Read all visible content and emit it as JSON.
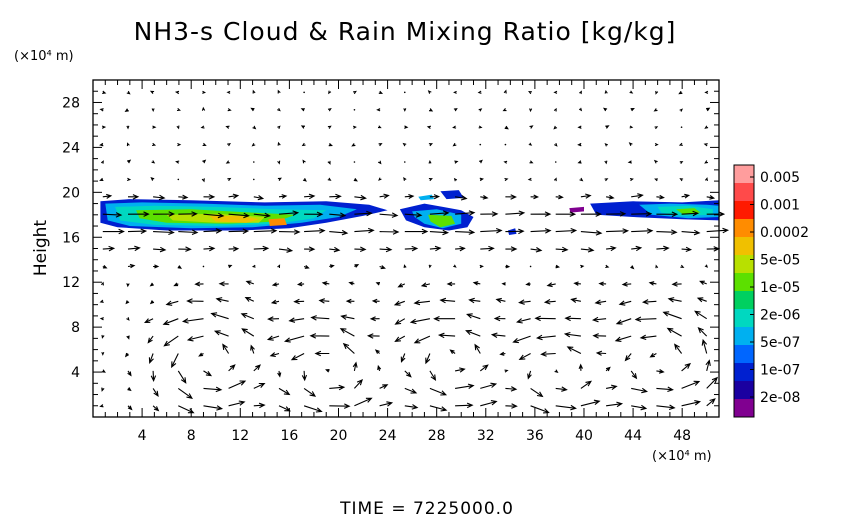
{
  "chart_data": {
    "type": "heatmap",
    "title": "NH3-s Cloud & Rain Mixing Ratio [kg/kg]",
    "ylabel": "Height",
    "y_unit": "(×10⁴ m)",
    "x_unit": "(×10⁴ m)",
    "xlim": [
      0,
      51
    ],
    "ylim": [
      0,
      30
    ],
    "x_ticks": [
      "4",
      "8",
      "12",
      "16",
      "20",
      "24",
      "28",
      "32",
      "36",
      "40",
      "44",
      "48"
    ],
    "y_ticks": [
      "4",
      "8",
      "12",
      "16",
      "20",
      "24",
      "28"
    ],
    "grid": false,
    "overlay": "velocity vectors (wind arrows)",
    "colorbar": {
      "scale": "log",
      "labels": [
        "0.005",
        "0.001",
        "0.0002",
        "5e-05",
        "1e-05",
        "2e-06",
        "5e-07",
        "1e-07",
        "2e-08"
      ],
      "colors": [
        "#ff9d9d",
        "#ff4a4a",
        "#ff1a00",
        "#ff8c00",
        "#f0c000",
        "#b8e000",
        "#5ce000",
        "#00d060",
        "#00d8c0",
        "#00b0f0",
        "#0066ff",
        "#0020d0",
        "#1a00a0",
        "#800090"
      ]
    },
    "cloud_regions": [
      {
        "x": [
          0.5,
          24
        ],
        "y": [
          16.5,
          19.3
        ],
        "peak_value": "0.0002"
      },
      {
        "x": [
          25,
          31
        ],
        "y": [
          16.5,
          20
        ],
        "peak_value": "1e-05"
      },
      {
        "x": [
          40,
          51
        ],
        "y": [
          17.5,
          19
        ],
        "peak_value": "1e-05"
      }
    ]
  },
  "footer": {
    "time_label": "TIME",
    "time_value": "7225000.0"
  }
}
